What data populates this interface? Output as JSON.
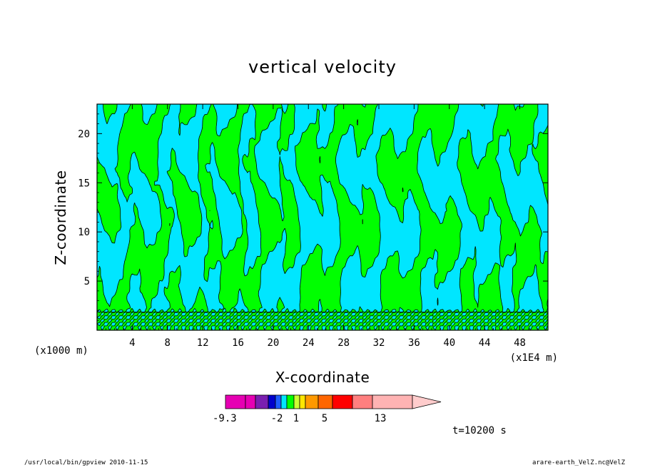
{
  "chart_data": {
    "type": "heatmap",
    "title": "vertical velocity",
    "xlabel": "X-coordinate",
    "ylabel": "Z-coordinate",
    "x_unit_left": "(x1000 m)",
    "x_unit_right": "(x1E4 m)",
    "xlim": [
      0,
      51.2
    ],
    "ylim": [
      0,
      23
    ],
    "x_ticks": [
      4,
      8,
      12,
      16,
      20,
      24,
      28,
      32,
      36,
      40,
      44,
      48
    ],
    "y_ticks": [
      5,
      10,
      15,
      20
    ],
    "field_colors": {
      "positive": "#00ff00",
      "negative": "#00e6ff",
      "contour": "#000000"
    },
    "colorbar": {
      "segments": [
        "#e600b3",
        "#e600b3",
        "#7a1fb0",
        "#0000cc",
        "#1e5cff",
        "#00e6ff",
        "#00ff00",
        "#ccff33",
        "#ffe600",
        "#ff9900",
        "#ff6600",
        "#ff0000",
        "#ff7f7f",
        "#ffb3b3"
      ],
      "arrow_color": "#ffcccc",
      "labels": [
        "-9.3",
        "-2",
        "1",
        "5",
        "13"
      ]
    },
    "time_label": "t=10200 s"
  },
  "footer": {
    "left": "/usr/local/bin/gpview   2010-11-15",
    "right": "arare-earth_VelZ.nc@VelZ"
  }
}
